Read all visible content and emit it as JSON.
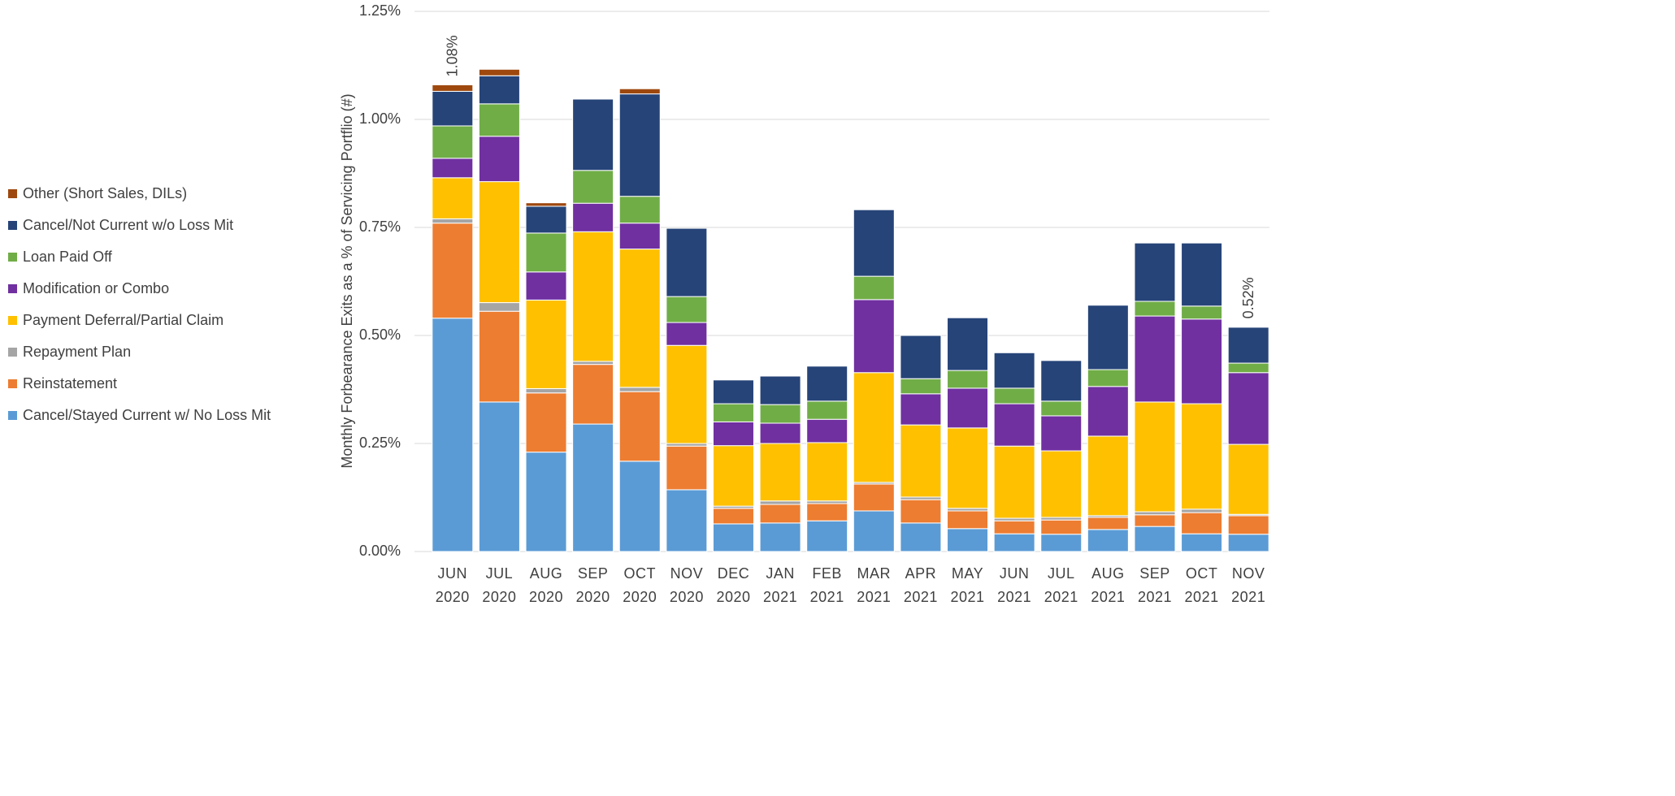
{
  "chart_data": {
    "type": "stacked-bar",
    "y_axis_label": "Monthly Forbearance Exits as a % of Servicing Portflio (#)",
    "categories": [
      "JUN 2020",
      "JUL 2020",
      "AUG 2020",
      "SEP 2020",
      "OCT 2020",
      "NOV 2020",
      "DEC 2020",
      "JAN 2021",
      "FEB 2021",
      "MAR 2021",
      "APR 2021",
      "MAY 2021",
      "JUN 2021",
      "JUL 2021",
      "AUG 2021",
      "SEP 2021",
      "OCT 2021",
      "NOV 2021"
    ],
    "series": [
      {
        "name": "Cancel/Stayed Current w/ No Loss Mit",
        "color": "#5b9bd5",
        "values": [
          0.54,
          0.346,
          0.23,
          0.295,
          0.209,
          0.143,
          0.064,
          0.066,
          0.071,
          0.094,
          0.066,
          0.053,
          0.041,
          0.04,
          0.051,
          0.058,
          0.041,
          0.04
        ]
      },
      {
        "name": "Reinstatement",
        "color": "#ed7d31",
        "values": [
          0.22,
          0.21,
          0.137,
          0.138,
          0.161,
          0.101,
          0.036,
          0.043,
          0.04,
          0.062,
          0.054,
          0.041,
          0.03,
          0.033,
          0.028,
          0.027,
          0.049,
          0.043
        ]
      },
      {
        "name": "Repayment Plan",
        "color": "#a5a5a5",
        "values": [
          0.01,
          0.02,
          0.01,
          0.007,
          0.01,
          0.006,
          0.005,
          0.008,
          0.006,
          0.004,
          0.006,
          0.006,
          0.006,
          0.006,
          0.004,
          0.007,
          0.008,
          0.003
        ]
      },
      {
        "name": "Payment Deferral/Partial Claim",
        "color": "#ffc000",
        "values": [
          0.095,
          0.28,
          0.205,
          0.3,
          0.32,
          0.227,
          0.14,
          0.133,
          0.135,
          0.254,
          0.167,
          0.186,
          0.167,
          0.154,
          0.184,
          0.254,
          0.244,
          0.162
        ]
      },
      {
        "name": "Modification or Combo",
        "color": "#7030a0",
        "values": [
          0.045,
          0.105,
          0.065,
          0.066,
          0.06,
          0.053,
          0.055,
          0.047,
          0.054,
          0.169,
          0.072,
          0.092,
          0.098,
          0.081,
          0.115,
          0.199,
          0.196,
          0.166
        ]
      },
      {
        "name": "Loan Paid Off",
        "color": "#70ad47",
        "values": [
          0.075,
          0.075,
          0.09,
          0.076,
          0.062,
          0.06,
          0.042,
          0.043,
          0.042,
          0.054,
          0.035,
          0.041,
          0.036,
          0.034,
          0.039,
          0.034,
          0.03,
          0.022
        ]
      },
      {
        "name": "Cancel/Not Current w/o Loss Mit",
        "color": "#264478",
        "values": [
          0.08,
          0.065,
          0.062,
          0.165,
          0.237,
          0.158,
          0.055,
          0.066,
          0.081,
          0.154,
          0.1,
          0.122,
          0.082,
          0.094,
          0.149,
          0.135,
          0.146,
          0.083
        ]
      },
      {
        "name": "Other (Short Sales, DILs)",
        "color": "#9e480e",
        "values": [
          0.015,
          0.015,
          0.008,
          0,
          0.012,
          0,
          0,
          0,
          0,
          0,
          0,
          0,
          0,
          0,
          0,
          0,
          0,
          0
        ]
      }
    ],
    "annotations": [
      {
        "text": "1.08%",
        "category": "JUN 2020",
        "value": 1.08
      },
      {
        "text": "0.52%",
        "category": "NOV 2021",
        "value": 0.52
      }
    ],
    "ylim": [
      0,
      1.25
    ],
    "yticks": [
      {
        "value": 0,
        "label": "0.00%"
      },
      {
        "value": 0.25,
        "label": "0.25%"
      },
      {
        "value": 0.5,
        "label": "0.50%"
      },
      {
        "value": 0.75,
        "label": "0.75%"
      },
      {
        "value": 1.0,
        "label": "1.00%"
      },
      {
        "value": 1.25,
        "label": "1.25%"
      }
    ],
    "grid": true,
    "legend": "left"
  }
}
